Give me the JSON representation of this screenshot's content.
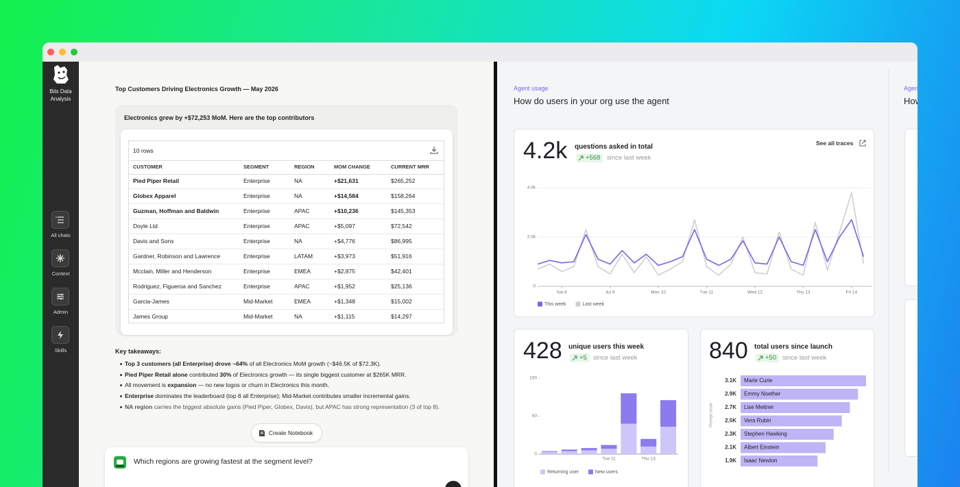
{
  "app": {
    "name": "Bits Data Analysis",
    "nav": [
      "All chats",
      "Context",
      "Admin",
      "Skills"
    ]
  },
  "report": {
    "title": "Top Customers Driving Electronics Growth — May 2026",
    "summary": "Electronics grew by +$72,253 MoM. Here are the top contributors",
    "table": {
      "row_count": "10 rows",
      "columns": [
        "CUSTOMER",
        "SEGMENT",
        "REGION",
        "MOM CHANGE",
        "CURRENT MRR"
      ],
      "rows": [
        {
          "cells": [
            "Pied Piper Retail",
            "Enterprise",
            "NA",
            "+$21,631",
            "$265,252"
          ],
          "bold": true
        },
        {
          "cells": [
            "Globex Apparel",
            "Enterprise",
            "NA",
            "+$14,584",
            "$158,264"
          ],
          "bold": true
        },
        {
          "cells": [
            "Guzman, Hoffman and Baldwin",
            "Enterprise",
            "APAC",
            "+$10,236",
            "$145,353"
          ],
          "bold": true
        },
        {
          "cells": [
            "Doyle Ltd",
            "Enterprise",
            "APAC",
            "+$5,097",
            "$72,542"
          ],
          "bold": false
        },
        {
          "cells": [
            "Davis and Sons",
            "Enterprise",
            "NA",
            "+$4,776",
            "$86,995"
          ],
          "bold": false
        },
        {
          "cells": [
            "Gardner, Robinson and Lawrence",
            "Enterprise",
            "LATAM",
            "+$3,973",
            "$51,916"
          ],
          "bold": false
        },
        {
          "cells": [
            "Mcclain, Miller and Henderson",
            "Enterprise",
            "EMEA",
            "+$2,875",
            "$42,401"
          ],
          "bold": false
        },
        {
          "cells": [
            "Rodriguez, Figueroa and Sanchez",
            "Enterprise",
            "APAC",
            "+$1,952",
            "$25,136"
          ],
          "bold": false
        },
        {
          "cells": [
            "Garcia-James",
            "Mid-Market",
            "EMEA",
            "+$1,348",
            "$15,002"
          ],
          "bold": false
        },
        {
          "cells": [
            "James Group",
            "Mid-Market",
            "NA",
            "+$1,115",
            "$14,297"
          ],
          "bold": false
        }
      ]
    },
    "takeaways": {
      "title": "Key takeaways:",
      "items": [
        [
          {
            "text": "Top 3 customers (all Enterprise) drove ~64%",
            "bold": true
          },
          {
            "text": " of all Electronics MoM growth (~$46.5K of $72.3K).",
            "bold": false
          }
        ],
        [
          {
            "text": "Pied Piper Retail alone",
            "bold": true
          },
          {
            "text": " contributed ",
            "bold": false
          },
          {
            "text": "30%",
            "bold": true
          },
          {
            "text": " of Electronics growth — its single biggest customer at $265K MRR.",
            "bold": false
          }
        ],
        [
          {
            "text": "All movement is ",
            "bold": false
          },
          {
            "text": "expansion",
            "bold": true
          },
          {
            "text": " — no new logos or churn in Electronics this month.",
            "bold": false
          }
        ],
        [
          {
            "text": "Enterprise",
            "bold": true
          },
          {
            "text": " dominates the leaderboard (top 8 all Enterprise); Mid-Market contributes smaller incremental gains.",
            "bold": false
          }
        ],
        [
          {
            "text": "NA region",
            "bold": true
          },
          {
            "text": " carries the biggest absolute gains (Pied Piper, Globex, Davis), but APAC has strong representation (3 of top 8).",
            "bold": false
          }
        ]
      ]
    },
    "notebook_button": "Create Notebook"
  },
  "chat": {
    "prompt": "Which regions are growing fastest at the segment level?"
  },
  "usage": {
    "section_label": "Agent usage",
    "heading": "How do users in your org use the agent",
    "cards": [
      {
        "metric": "4.2k",
        "label": "questions asked in total",
        "delta": "+568",
        "note": "since last week",
        "link": "See all traces"
      },
      {
        "metric": "428",
        "label": "unique users this week",
        "delta": "+5",
        "note": "since last week"
      },
      {
        "metric": "840",
        "label": "total users since launch",
        "delta": "+50",
        "note": "since last week"
      }
    ]
  },
  "chart_data": [
    {
      "type": "line",
      "x": [
        7.5,
        7.75,
        8,
        8.25,
        8.5,
        8.75,
        9,
        9.25,
        9.5,
        9.75,
        10,
        10.25,
        10.5,
        10.75,
        11,
        11.25,
        11.5,
        11.75,
        12,
        12.25,
        12.5,
        12.75,
        13,
        13.25,
        13.5,
        13.75,
        14,
        14.25
      ],
      "xlim": [
        7.5,
        14.3
      ],
      "xticks": [
        {
          "value": 8,
          "label": "Sat 8"
        },
        {
          "value": 9,
          "label": "Jul 9"
        },
        {
          "value": 10,
          "label": "Mon 10"
        },
        {
          "value": 11,
          "label": "Tue 11"
        },
        {
          "value": 12,
          "label": "Wed 12"
        },
        {
          "value": 13,
          "label": "Thu 13"
        },
        {
          "value": 14,
          "label": "Fri 14"
        }
      ],
      "ylim": [
        0,
        4000
      ],
      "yticks": [
        0,
        {
          "value": 2000,
          "label": "2.0k"
        },
        {
          "value": 4000,
          "label": "4.0k"
        }
      ],
      "grid": true,
      "series": [
        {
          "name": "This week",
          "color": "#7466ea",
          "values": [
            900,
            1050,
            950,
            1000,
            2100,
            1100,
            900,
            1450,
            950,
            1300,
            850,
            1000,
            1200,
            2300,
            1100,
            850,
            1100,
            1850,
            950,
            900,
            2000,
            1000,
            850,
            2300,
            1000,
            2000,
            2700,
            1200
          ]
        },
        {
          "name": "Last week",
          "color": "#cfcfcf",
          "values": [
            700,
            900,
            600,
            800,
            2300,
            800,
            500,
            1300,
            550,
            1200,
            450,
            700,
            1000,
            2700,
            800,
            450,
            900,
            2000,
            550,
            500,
            2200,
            700,
            450,
            2600,
            650,
            2200,
            3800,
            900
          ]
        }
      ]
    },
    {
      "type": "bar",
      "stacked": true,
      "categories": [
        null,
        null,
        null,
        "Tue 11",
        null,
        "Thu 13",
        null
      ],
      "ylim": [
        0,
        100
      ],
      "yticks": [
        0,
        50,
        100
      ],
      "series": [
        {
          "name": "Returning user",
          "color": "#cdc6f8",
          "values": [
            3,
            4,
            5,
            7,
            40,
            10,
            36
          ]
        },
        {
          "name": "New users",
          "color": "#8a7cef",
          "values": [
            1,
            2,
            3,
            5,
            40,
            10,
            35
          ]
        }
      ]
    },
    {
      "type": "bar",
      "orientation": "horizontal",
      "categories": [
        "Marie Curie",
        "Emmy Noether",
        "Lise Meitner",
        "Vera Rubin",
        "Stephen Hawking",
        "Albert Einstein",
        "Isaac Newton"
      ],
      "values": [
        3100,
        2900,
        2700,
        2500,
        2300,
        2100,
        1900
      ],
      "value_labels": [
        "3.1K",
        "2.9K",
        "2.7K",
        "2.5K",
        "2.3K",
        "2.1K",
        "1.9K"
      ],
      "color": "#beb4f6",
      "y_label": "Prompt count"
    }
  ]
}
